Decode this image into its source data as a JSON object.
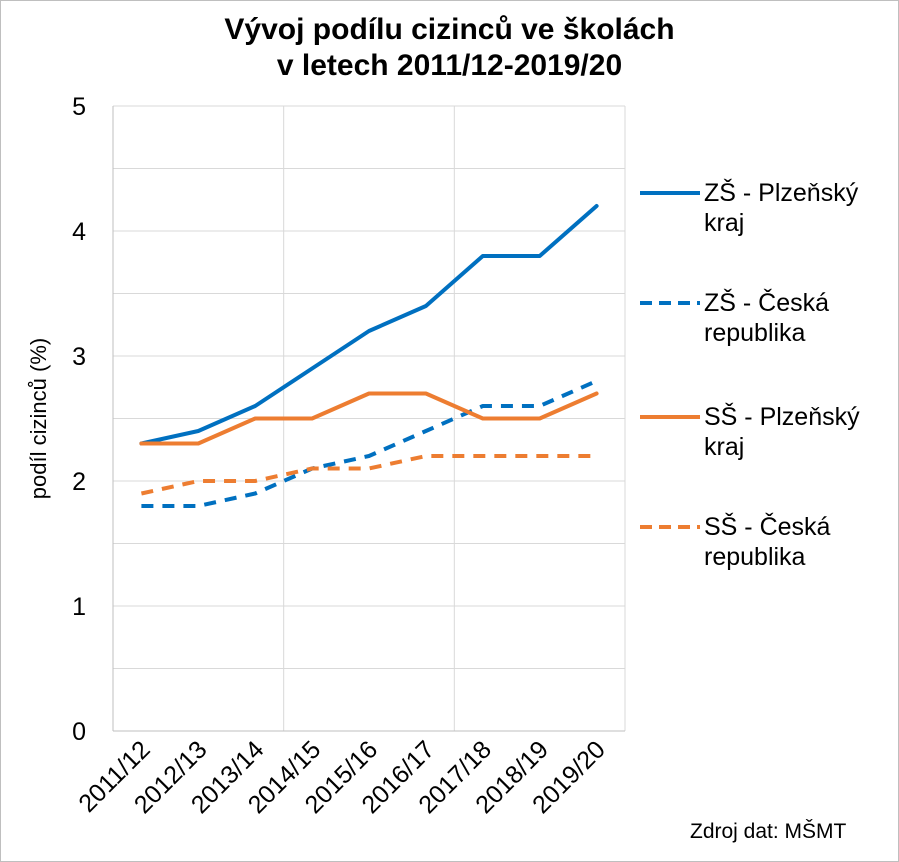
{
  "title_line1": "Vývoj podílu cizinců ve školách",
  "title_line2": "v letech 2011/12-2019/20",
  "source": "Zdroj dat: MŠMT",
  "chart_data": {
    "type": "line",
    "title": "Vývoj podílu cizinců ve školách v letech 2011/12-2019/20",
    "xlabel": "",
    "ylabel": "podíl cizinců (%)",
    "ylim": [
      0,
      5
    ],
    "yticks": [
      0,
      1,
      2,
      3,
      4,
      5
    ],
    "categories": [
      "2011/12",
      "2012/13",
      "2013/14",
      "2014/15",
      "2015/16",
      "2016/17",
      "2017/18",
      "2018/19",
      "2019/20"
    ],
    "grid": true,
    "legend": "right",
    "series": [
      {
        "name": "ZŠ - Plzeňský kraj",
        "color": "#0070c0",
        "dash": "solid",
        "values": [
          2.3,
          2.4,
          2.6,
          2.9,
          3.2,
          3.4,
          3.8,
          3.8,
          4.2
        ]
      },
      {
        "name": "ZŠ - Česká republika",
        "color": "#0070c0",
        "dash": "dashed",
        "values": [
          1.8,
          1.8,
          1.9,
          2.1,
          2.2,
          2.4,
          2.6,
          2.6,
          2.8
        ]
      },
      {
        "name": "SŠ - Plzeňský kraj",
        "color": "#ed7d31",
        "dash": "solid",
        "values": [
          2.3,
          2.3,
          2.5,
          2.5,
          2.7,
          2.7,
          2.5,
          2.5,
          2.7
        ]
      },
      {
        "name": "SŠ - Česká republika",
        "color": "#ed7d31",
        "dash": "dashed",
        "values": [
          1.9,
          2.0,
          2.0,
          2.1,
          2.1,
          2.2,
          2.2,
          2.2,
          2.2
        ]
      }
    ]
  }
}
